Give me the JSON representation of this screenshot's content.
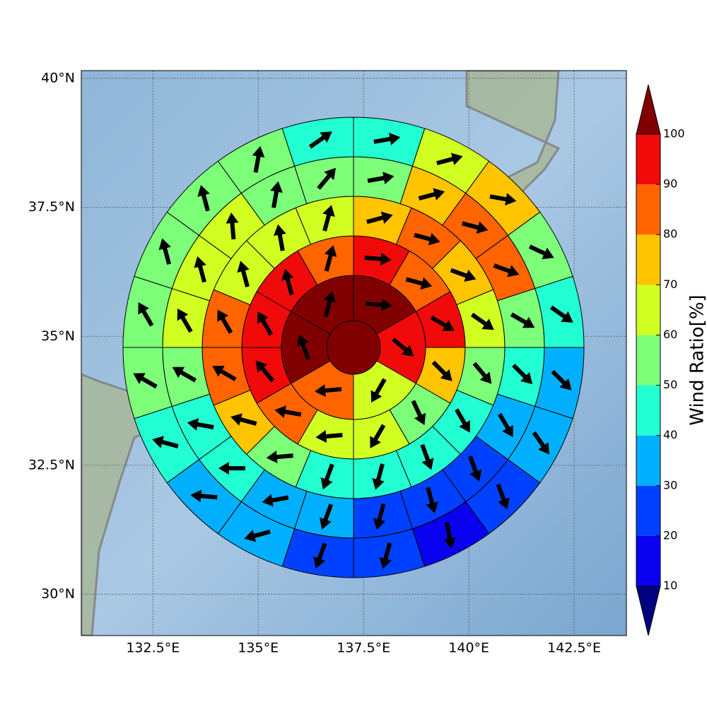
{
  "chart_data": {
    "type": "polar-sector-map",
    "xlim": [
      130.8,
      143.74
    ],
    "ylim": [
      29.2,
      40.15
    ],
    "xticks": [
      {
        "value": 132.5,
        "label": "132.5°E"
      },
      {
        "value": 135,
        "label": "135°E"
      },
      {
        "value": 137.5,
        "label": "137.5°E"
      },
      {
        "value": 140,
        "label": "140°E"
      },
      {
        "value": 142.5,
        "label": "142.5°E"
      }
    ],
    "yticks": [
      {
        "value": 30,
        "label": "30°N"
      },
      {
        "value": 32.5,
        "label": "32.5°N"
      },
      {
        "value": 35,
        "label": "35°N"
      },
      {
        "value": 37.5,
        "label": "37.5°N"
      },
      {
        "value": 40,
        "label": "40°N"
      }
    ],
    "grid": true,
    "colorbar": {
      "label": "Wind Ratio[%]",
      "ticks": [
        10,
        20,
        30,
        40,
        50,
        60,
        70,
        80,
        90,
        100
      ],
      "colors": [
        "#0a00f0",
        "#0040ff",
        "#00b0ff",
        "#22ffd2",
        "#7dff7a",
        "#d2ff22",
        "#ffc400",
        "#ff6400",
        "#f00a0a"
      ],
      "under_color": "#000080",
      "over_color": "#800000"
    },
    "rings": [
      {
        "values": [
          100
        ]
      },
      {
        "values": [
          100,
          95,
          65,
          85,
          100,
          100
        ],
        "directions": [
          95,
          130,
          210,
          265,
          340,
          15
        ]
      },
      {
        "values": [
          95,
          85,
          95,
          75,
          55,
          65,
          65,
          85,
          95,
          95,
          95,
          85
        ],
        "directions": [
          95,
          105,
          120,
          135,
          155,
          210,
          265,
          280,
          320,
          330,
          345,
          15
        ]
      },
      {
        "values": [
          75,
          85,
          75,
          65,
          55,
          45,
          45,
          45,
          45,
          55,
          75,
          85,
          85,
          65,
          65,
          65
        ],
        "directions": [
          75,
          105,
          110,
          125,
          140,
          150,
          160,
          195,
          200,
          265,
          285,
          300,
          330,
          345,
          350,
          15
        ]
      },
      {
        "values": [
          55,
          75,
          85,
          85,
          55,
          45,
          35,
          25,
          25,
          25,
          35,
          35,
          45,
          45,
          55,
          65,
          65,
          65,
          55,
          55
        ],
        "directions": [
          80,
          75,
          105,
          110,
          120,
          135,
          150,
          160,
          165,
          195,
          200,
          260,
          270,
          280,
          300,
          330,
          345,
          355,
          10,
          40
        ]
      },
      {
        "values": [
          45,
          65,
          75,
          55,
          45,
          35,
          35,
          25,
          15,
          25,
          25,
          35,
          35,
          45,
          55,
          55,
          55,
          55,
          55,
          45
        ],
        "directions": [
          80,
          75,
          100,
          115,
          125,
          135,
          145,
          160,
          170,
          195,
          200,
          255,
          275,
          285,
          300,
          330,
          345,
          345,
          10,
          55
        ]
      }
    ]
  }
}
